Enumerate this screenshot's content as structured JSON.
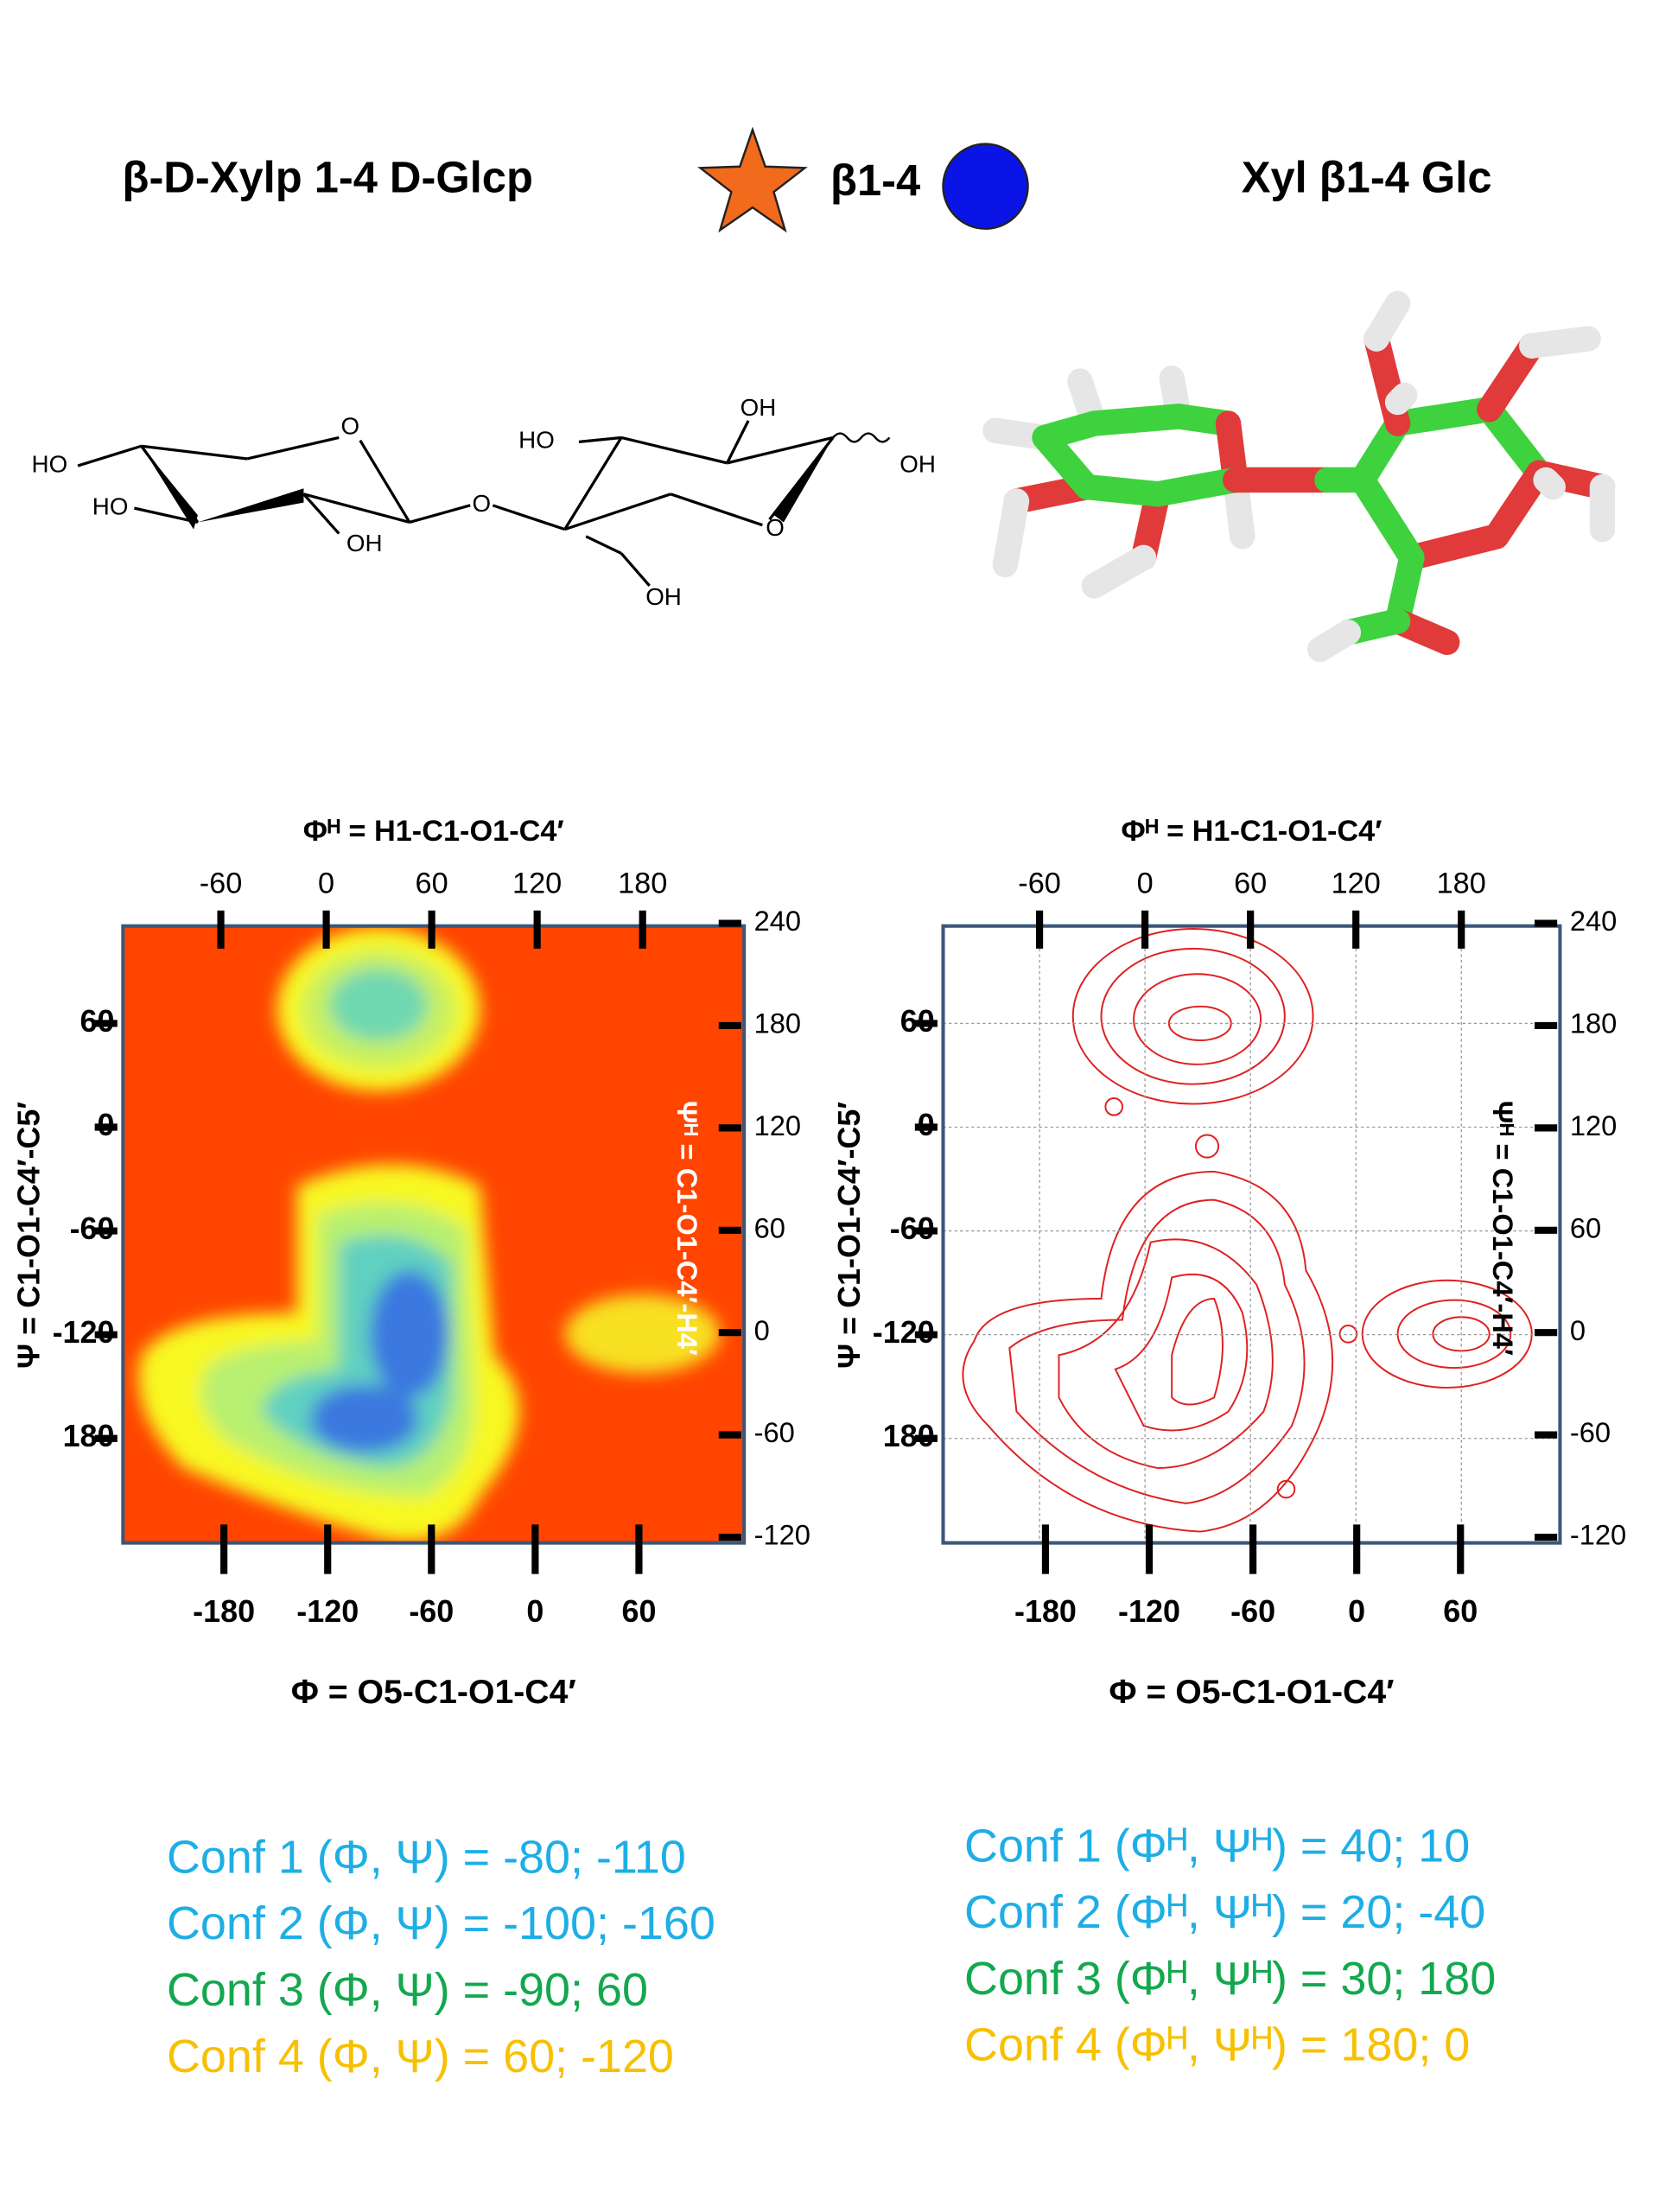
{
  "header": {
    "left_title": "β-D-Xylp 1-4 D-Glcp",
    "linkage": "β1-4",
    "right_title": "Xyl β1-4 Glc"
  },
  "structure_labels": [
    "HO",
    "HO",
    "OH",
    "O",
    "O",
    "HO",
    "OH",
    "OH",
    "O",
    "OH"
  ],
  "panels": [
    {
      "top_axis_label": "Φᴴ = H1-C1-O1-C4′",
      "top_ticks": [
        -60,
        0,
        60,
        120,
        180
      ],
      "left_axis_label": "Ψ = C1-O1-C4′-C5′",
      "left_ticks": [
        60,
        0,
        -60,
        -120,
        180
      ],
      "right_axis_label": "Ψᴴ = C1-O1-C4′-H4′",
      "right_ticks": [
        240,
        180,
        120,
        60,
        0,
        -60,
        -120
      ],
      "bottom_ticks": [
        -180,
        -120,
        -60,
        0,
        60
      ],
      "bottom_axis_label": "Φ = O5-C1-O1-C4′"
    },
    {
      "top_axis_label": "Φᴴ = H1-C1-O1-C4′",
      "top_ticks": [
        -60,
        0,
        60,
        120,
        180
      ],
      "left_axis_label": "Ψ = C1-O1-C4′-C5′",
      "left_ticks": [
        60,
        0,
        -60,
        -120,
        180
      ],
      "right_axis_label": "Ψᴴ = C1-O1-C4′-H4′",
      "right_ticks": [
        240,
        180,
        120,
        60,
        0,
        -60,
        -120
      ],
      "bottom_ticks": [
        -180,
        -120,
        -60,
        0,
        60
      ],
      "bottom_axis_label": "Φ = O5-C1-O1-C4′"
    }
  ],
  "conformations": [
    {
      "lines": [
        {
          "text": "Conf 1 (Φ, Ψ) = -80; -110",
          "color": "#1eaee6"
        },
        {
          "text": "Conf 2 (Φ, Ψ) =  -100; -160",
          "color": "#1eaee6"
        },
        {
          "text": "Conf 3 (Φ, Ψ) =  -90; 60",
          "color": "#13a84e"
        },
        {
          "text": "Conf 4 (Φ, Ψ) =   60; -120",
          "color": "#f7c000"
        }
      ]
    },
    {
      "lines": [
        {
          "text": "Conf 1 (Φᴴ, Ψᴴ) = 40; 10",
          "color": "#1eaee6"
        },
        {
          "text": "Conf 2 (Φᴴ, Ψᴴ) = 20; -40",
          "color": "#1eaee6"
        },
        {
          "text": "Conf 3 (Φᴴ, Ψᴴ) = 30; 180",
          "color": "#13a84e"
        },
        {
          "text": "Conf 4 (Φᴴ, Ψᴴ) = 180; 0",
          "color": "#f7c000"
        }
      ]
    }
  ]
}
